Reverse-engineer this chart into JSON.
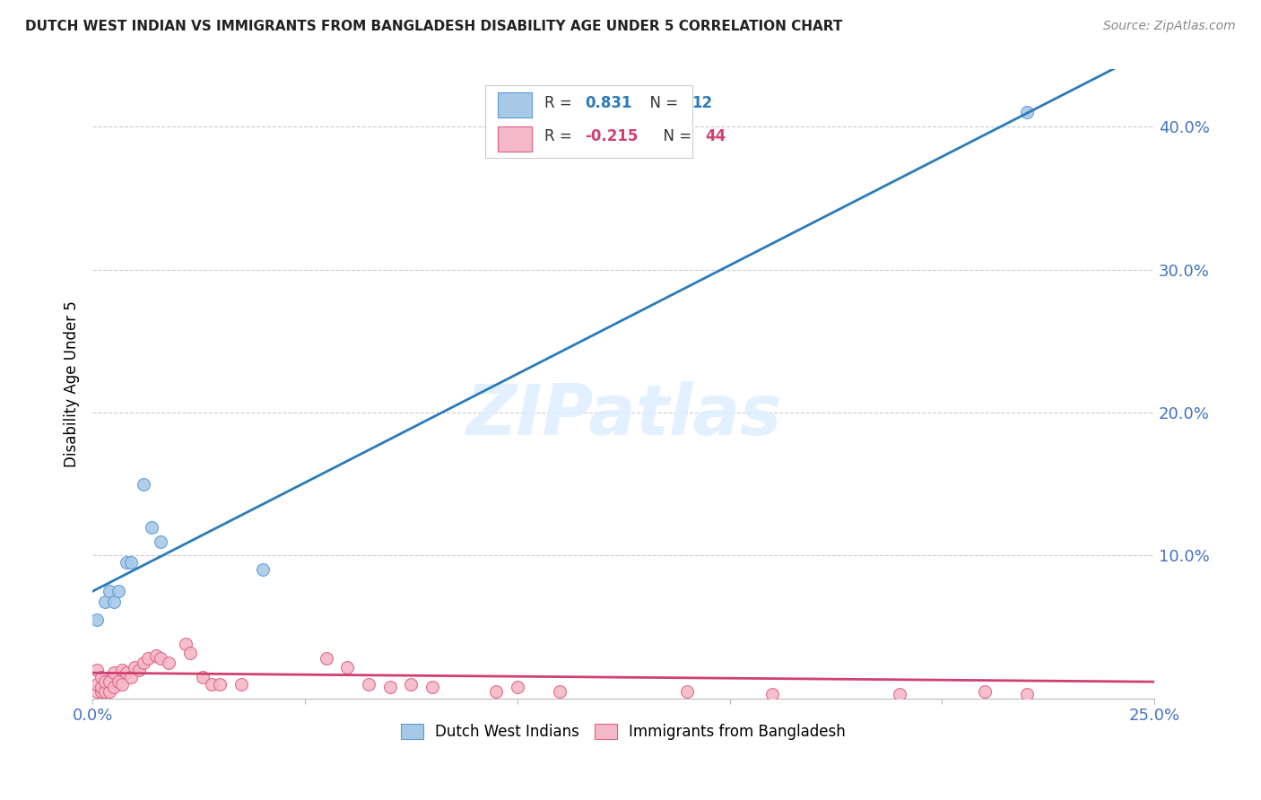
{
  "title": "DUTCH WEST INDIAN VS IMMIGRANTS FROM BANGLADESH DISABILITY AGE UNDER 5 CORRELATION CHART",
  "source": "Source: ZipAtlas.com",
  "ylabel": "Disability Age Under 5",
  "watermark": "ZIPatlas",
  "blue_color": "#a8c8e8",
  "blue_edge_color": "#5b9bd5",
  "pink_color": "#f4b8c8",
  "pink_edge_color": "#e06080",
  "blue_line_color": "#2b7bba",
  "pink_line_color": "#d04070",
  "axis_label_color": "#4472c4",
  "xlim": [
    0.0,
    0.25
  ],
  "ylim": [
    0.0,
    0.44
  ],
  "yticks": [
    0.1,
    0.2,
    0.3,
    0.4
  ],
  "ytick_labels": [
    "10.0%",
    "20.0%",
    "30.0%",
    "40.0%"
  ],
  "blue_scatter_x": [
    0.001,
    0.003,
    0.004,
    0.005,
    0.006,
    0.008,
    0.009,
    0.012,
    0.014,
    0.016,
    0.04,
    0.22
  ],
  "blue_scatter_y": [
    0.055,
    0.068,
    0.075,
    0.068,
    0.075,
    0.095,
    0.095,
    0.15,
    0.12,
    0.11,
    0.09,
    0.41
  ],
  "pink_scatter_x": [
    0.001,
    0.001,
    0.001,
    0.002,
    0.002,
    0.002,
    0.003,
    0.003,
    0.004,
    0.004,
    0.005,
    0.005,
    0.006,
    0.007,
    0.007,
    0.008,
    0.009,
    0.01,
    0.011,
    0.012,
    0.013,
    0.015,
    0.016,
    0.018,
    0.022,
    0.023,
    0.026,
    0.028,
    0.03,
    0.035,
    0.055,
    0.06,
    0.065,
    0.07,
    0.075,
    0.08,
    0.095,
    0.1,
    0.11,
    0.14,
    0.16,
    0.19,
    0.21,
    0.22
  ],
  "pink_scatter_y": [
    0.005,
    0.01,
    0.02,
    0.005,
    0.008,
    0.015,
    0.005,
    0.012,
    0.005,
    0.012,
    0.008,
    0.018,
    0.012,
    0.01,
    0.02,
    0.018,
    0.015,
    0.022,
    0.02,
    0.025,
    0.028,
    0.03,
    0.028,
    0.025,
    0.038,
    0.032,
    0.015,
    0.01,
    0.01,
    0.01,
    0.028,
    0.022,
    0.01,
    0.008,
    0.01,
    0.008,
    0.005,
    0.008,
    0.005,
    0.005,
    0.003,
    0.003,
    0.005,
    0.003
  ],
  "blue_line_intercept": 0.075,
  "blue_line_slope": 1.52,
  "pink_line_intercept": 0.018,
  "pink_line_slope": -0.025,
  "background_color": "#ffffff",
  "grid_color": "#cccccc"
}
